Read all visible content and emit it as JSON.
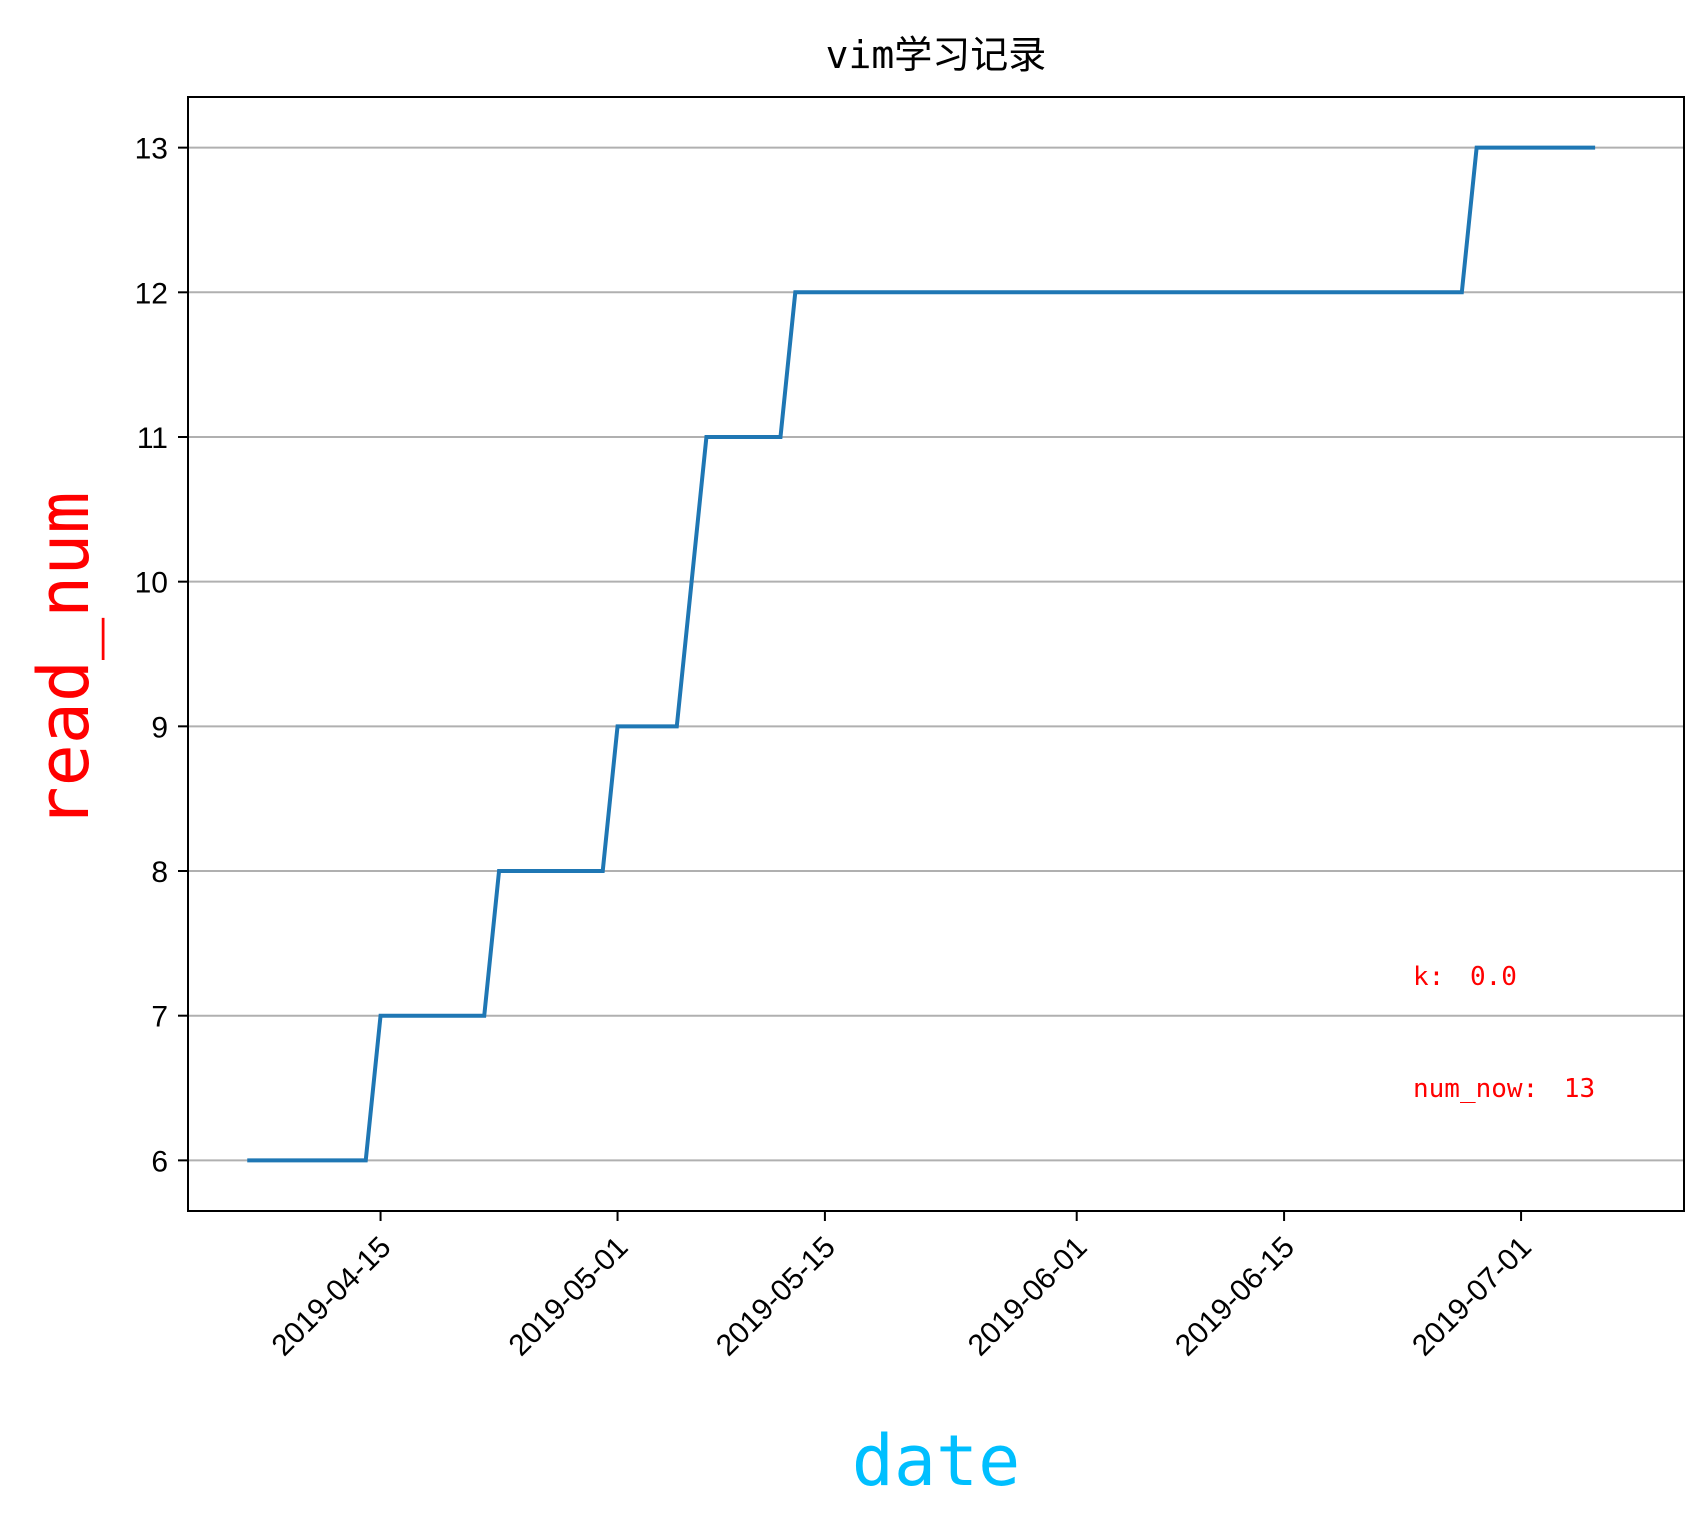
{
  "chart_data": {
    "type": "line",
    "title": "vim学习记录",
    "xlabel": "date",
    "ylabel": "read_num",
    "xlabel_color": "#00bfff",
    "ylabel_color": "#ff0000",
    "line_color": "#1f77b4",
    "annotation_color": "#ff0000",
    "grid": "y",
    "xlim": [
      "2019-04-02",
      "2019-07-12"
    ],
    "ylim": [
      5.65,
      13.35
    ],
    "x_ticks": [
      "2019-04-15",
      "2019-05-01",
      "2019-05-15",
      "2019-06-01",
      "2019-06-15",
      "2019-07-01"
    ],
    "y_ticks": [
      6,
      7,
      8,
      9,
      10,
      11,
      12,
      13
    ],
    "series": [
      {
        "x": [
          "2019-04-06",
          "2019-04-14",
          "2019-04-15",
          "2019-04-22",
          "2019-04-23",
          "2019-04-30",
          "2019-05-01",
          "2019-05-05",
          "2019-05-07",
          "2019-05-12",
          "2019-05-13",
          "2019-06-27",
          "2019-06-28",
          "2019-07-06"
        ],
        "y": [
          6,
          6,
          7,
          7,
          8,
          8,
          9,
          9,
          11,
          11,
          12,
          12,
          13,
          13
        ]
      }
    ],
    "annotations": [
      {
        "label": "k:",
        "value": "0.0"
      },
      {
        "label": "num_now:",
        "value": "13"
      }
    ]
  }
}
